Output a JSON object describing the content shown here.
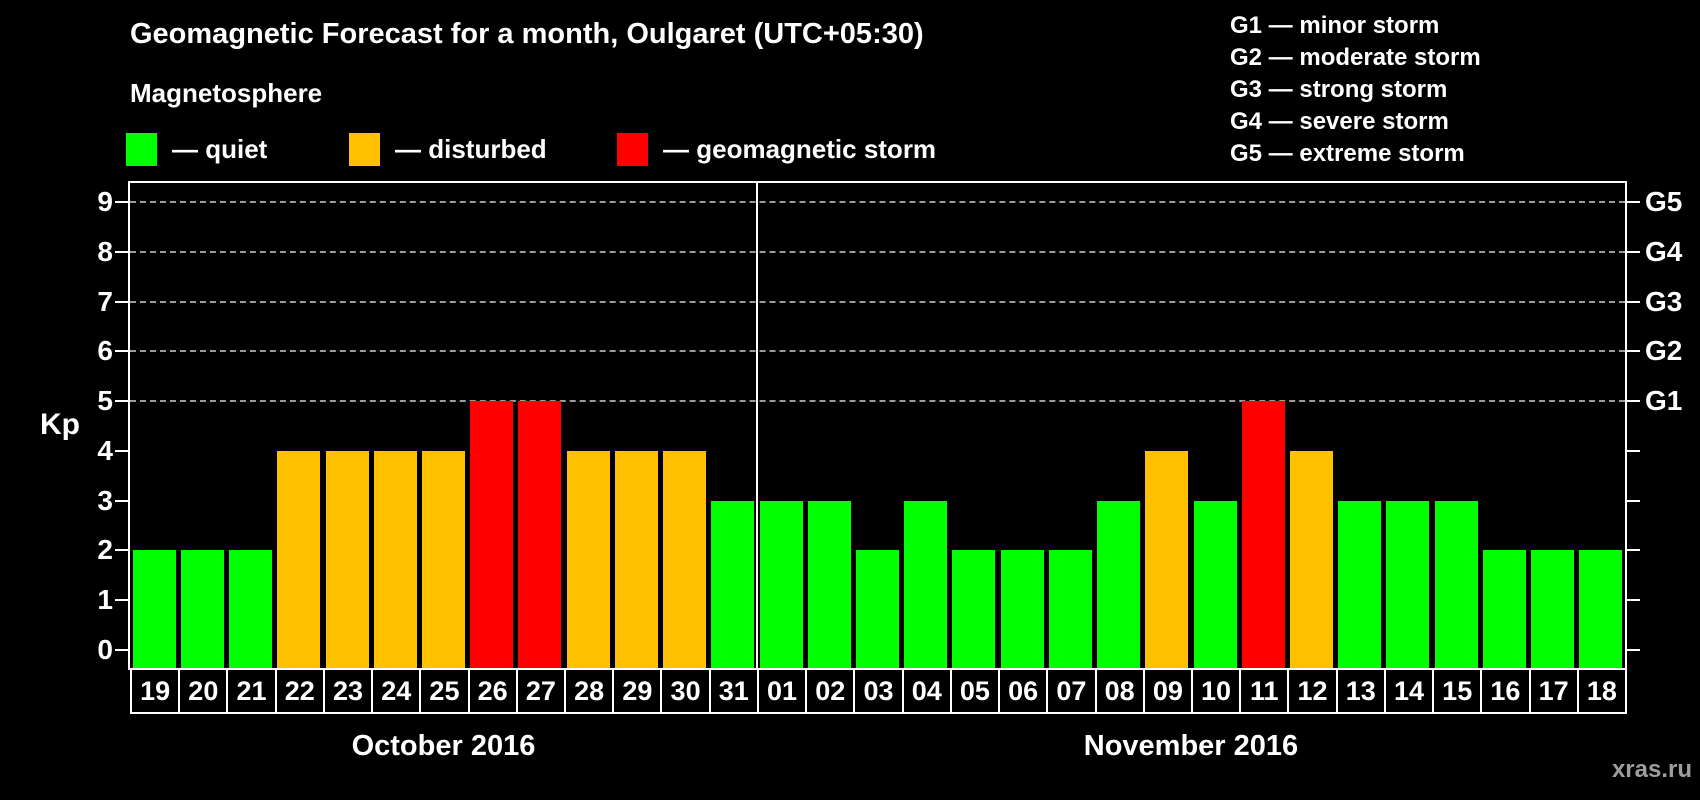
{
  "header": {
    "title": "Geomagnetic Forecast for a month, Oulgaret (UTC+05:30)",
    "subtitle": "Magnetosphere"
  },
  "legend": {
    "items": [
      {
        "key": "quiet",
        "label": "— quiet",
        "color": "#00ff00"
      },
      {
        "key": "disturbed",
        "label": "— disturbed",
        "color": "#ffc000"
      },
      {
        "key": "storm",
        "label": "— geomagnetic storm",
        "color": "#ff0000"
      }
    ]
  },
  "g_scale_legend": {
    "items": [
      "G1 — minor storm",
      "G2 — moderate storm",
      "G3 — strong storm",
      "G4 — severe storm",
      "G5 — extreme storm"
    ]
  },
  "watermark": "xras.ru",
  "chart_data": {
    "type": "bar",
    "ylabel": "Kp",
    "ylim": [
      0,
      9
    ],
    "y_ticks": [
      0,
      1,
      2,
      3,
      4,
      5,
      6,
      7,
      8,
      9
    ],
    "gridlines_at": [
      5,
      6,
      7,
      8,
      9
    ],
    "grid": "dashed horizontal at Kp 5-9 only",
    "legend_position": "top-left",
    "right_axis_labels": [
      {
        "label": "G1",
        "kp": 5
      },
      {
        "label": "G2",
        "kp": 6
      },
      {
        "label": "G3",
        "kp": 7
      },
      {
        "label": "G4",
        "kp": 8
      },
      {
        "label": "G5",
        "kp": 9
      }
    ],
    "colors": {
      "quiet": "#00ff00",
      "disturbed": "#ffc000",
      "storm": "#ff0000"
    },
    "groups": [
      {
        "label": "October 2016",
        "days": [
          {
            "day": "19",
            "kp": 2,
            "status": "quiet"
          },
          {
            "day": "20",
            "kp": 2,
            "status": "quiet"
          },
          {
            "day": "21",
            "kp": 2,
            "status": "quiet"
          },
          {
            "day": "22",
            "kp": 4,
            "status": "disturbed"
          },
          {
            "day": "23",
            "kp": 4,
            "status": "disturbed"
          },
          {
            "day": "24",
            "kp": 4,
            "status": "disturbed"
          },
          {
            "day": "25",
            "kp": 4,
            "status": "disturbed"
          },
          {
            "day": "26",
            "kp": 5,
            "status": "storm"
          },
          {
            "day": "27",
            "kp": 5,
            "status": "storm"
          },
          {
            "day": "28",
            "kp": 4,
            "status": "disturbed"
          },
          {
            "day": "29",
            "kp": 4,
            "status": "disturbed"
          },
          {
            "day": "30",
            "kp": 4,
            "status": "disturbed"
          },
          {
            "day": "31",
            "kp": 3,
            "status": "quiet"
          }
        ]
      },
      {
        "label": "November 2016",
        "days": [
          {
            "day": "01",
            "kp": 3,
            "status": "quiet"
          },
          {
            "day": "02",
            "kp": 3,
            "status": "quiet"
          },
          {
            "day": "03",
            "kp": 2,
            "status": "quiet"
          },
          {
            "day": "04",
            "kp": 3,
            "status": "quiet"
          },
          {
            "day": "05",
            "kp": 2,
            "status": "quiet"
          },
          {
            "day": "06",
            "kp": 2,
            "status": "quiet"
          },
          {
            "day": "07",
            "kp": 2,
            "status": "quiet"
          },
          {
            "day": "08",
            "kp": 3,
            "status": "quiet"
          },
          {
            "day": "09",
            "kp": 4,
            "status": "disturbed"
          },
          {
            "day": "10",
            "kp": 3,
            "status": "quiet"
          },
          {
            "day": "11",
            "kp": 5,
            "status": "storm"
          },
          {
            "day": "12",
            "kp": 4,
            "status": "disturbed"
          },
          {
            "day": "13",
            "kp": 3,
            "status": "quiet"
          },
          {
            "day": "14",
            "kp": 3,
            "status": "quiet"
          },
          {
            "day": "15",
            "kp": 3,
            "status": "quiet"
          },
          {
            "day": "16",
            "kp": 2,
            "status": "quiet"
          },
          {
            "day": "17",
            "kp": 2,
            "status": "quiet"
          },
          {
            "day": "18",
            "kp": 2,
            "status": "quiet"
          }
        ]
      }
    ]
  }
}
